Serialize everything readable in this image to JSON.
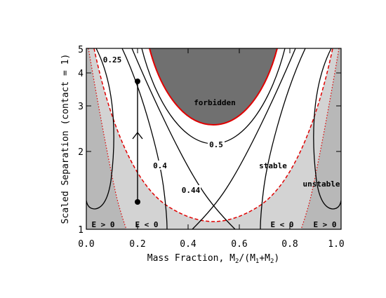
{
  "chart_data": {
    "type": "line",
    "xlabel": "Mass Fraction, M",
    "xlabel_sub": "2",
    "xlabel_rest": "/(M",
    "xlabel_sub2": "1",
    "xlabel_plus": "+M",
    "xlabel_sub3": "2",
    "xlabel_end": ")",
    "ylabel": "Scaled Separation (contact = 1)",
    "xlim": [
      0.0,
      1.0
    ],
    "ylim": [
      1,
      5
    ],
    "yscale": "log",
    "xticks": [
      "0.0",
      "0.2",
      "0.4",
      "0.6",
      "0.8",
      "1.0"
    ],
    "xtick_values": [
      0.0,
      0.2,
      0.4,
      0.6,
      0.8,
      1.0
    ],
    "yticks": [
      "1",
      "2",
      "3",
      "4",
      "5"
    ],
    "ytick_values": [
      1,
      2,
      3,
      4,
      5
    ],
    "regions": {
      "forbidden": "forbidden",
      "stable": "stable",
      "unstable": "unstable",
      "e_pos_left": "E > 0",
      "e_neg_left": "E < 0",
      "e_neg_right": "E < 0",
      "e_pos_right": "E > 0"
    },
    "contours": [
      {
        "label": "0.25",
        "level": 0.25
      },
      {
        "label": "0.4",
        "level": 0.4
      },
      {
        "label": "0.44",
        "level": 0.44
      },
      {
        "label": "0.5",
        "level": 0.5
      }
    ],
    "forbidden_boundary": {
      "x": [
        0.25,
        0.3,
        0.35,
        0.4,
        0.45,
        0.5,
        0.55,
        0.6,
        0.65,
        0.7,
        0.75
      ],
      "y": [
        5.0,
        3.85,
        3.2,
        2.82,
        2.6,
        2.53,
        2.6,
        2.82,
        3.2,
        3.85,
        5.0
      ]
    },
    "stability_boundary": {
      "x": [
        0.03,
        0.06,
        0.1,
        0.15,
        0.2,
        0.25,
        0.3,
        0.35,
        0.4,
        0.45,
        0.5,
        0.55,
        0.6,
        0.65,
        0.7,
        0.75,
        0.8,
        0.85,
        0.9,
        0.94,
        0.97
      ],
      "y": [
        5.0,
        3.55,
        2.6,
        1.98,
        1.63,
        1.41,
        1.27,
        1.17,
        1.11,
        1.08,
        1.07,
        1.08,
        1.11,
        1.17,
        1.27,
        1.41,
        1.63,
        1.98,
        2.6,
        3.55,
        5.0
      ]
    },
    "energy_boundary": {
      "x": [
        0.0,
        0.05,
        0.1,
        0.13,
        0.16,
        0.18,
        0.87,
        0.84,
        0.82
      ],
      "y": [
        5.0,
        3.0,
        1.8,
        1.45,
        1.15,
        1.0,
        1.0,
        1.15,
        1.45
      ]
    },
    "track": {
      "x": [
        0.2,
        0.2
      ],
      "y": [
        1.3,
        3.65
      ]
    },
    "colors": {
      "forbidden_fill": "#707070",
      "unstable_fill": "#d3d3d3",
      "energy_fill": "#b8b8b8",
      "boundary_red": "#e00000",
      "line": "#000000"
    }
  }
}
